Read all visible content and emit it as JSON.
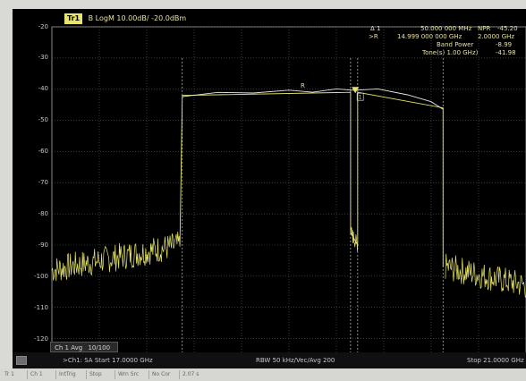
{
  "trace": {
    "badge": "Tr1",
    "label": "B LogM 10.00dB/ -20.0dBm"
  },
  "marker_readout": {
    "delta_label": "Δ 1",
    "delta_freq": "50.000 000 MHz",
    "npr_label": "NPR",
    "npr_value": "-45.20",
    "ref_label": ">R",
    "ref_freq": "14.999 000 000 GHz",
    "ref_span": "2.0000 GHz",
    "band_power_label": "Band Power",
    "band_power_value": "-8.99",
    "tone_label": "Tone(s) 1.00 GHz)",
    "tone_value": "-41.98"
  },
  "y_axis": {
    "ticks": [
      "-20",
      "-30",
      "-40",
      "-50",
      "-60",
      "-70",
      "-80",
      "-90",
      "-100",
      "-110",
      "-120"
    ]
  },
  "marker": {
    "name": "R",
    "box_label": "1"
  },
  "average": {
    "channel": "Ch 1 Avg",
    "count": "10/100"
  },
  "footer": {
    "channel_info": ">Ch1: SA  Start  17.0000 GHz",
    "rbw_info": "RBW  50 kHz/Vec/Avg 200",
    "stop_info": "Stop  21.0000 GHz"
  },
  "statusbar": {
    "items": [
      "Tr 1",
      "Ch 1",
      "IntTrig",
      "Stop",
      "Wrn Src",
      "No Cor",
      "2.07 s"
    ]
  },
  "chart_data": {
    "type": "line",
    "title": "",
    "xlabel": "",
    "ylabel": "",
    "ylim": [
      -125,
      -20
    ],
    "xlim_label": [
      "17.0000 GHz",
      "21.0000 GHz"
    ],
    "grid": true,
    "series": [
      {
        "x": [
          17.0,
          17.2,
          17.4,
          17.6,
          17.8,
          18.0,
          18.1,
          18.4,
          18.7,
          19.0,
          19.2,
          19.4,
          19.55,
          19.56,
          19.6,
          19.7,
          19.75,
          19.8,
          20.0,
          20.2,
          20.3,
          20.32,
          20.5,
          20.7,
          20.9,
          21.0
        ],
        "y": [
          -98,
          -93,
          -94,
          -92,
          -91,
          -90,
          -42,
          -41,
          -41,
          -40,
          -41,
          -40,
          -40,
          -86,
          -88,
          -90,
          -40,
          -42,
          -43,
          -44,
          -46,
          -97,
          -99,
          -100,
          -101,
          -103
        ],
        "color": "#e8e66a"
      },
      {
        "x": [
          18.1,
          18.4,
          18.7,
          19.0,
          19.2,
          19.4,
          19.55,
          19.75,
          20.0,
          20.2,
          20.3
        ],
        "y": [
          -42,
          -41,
          -41,
          -40,
          -41,
          -40,
          -40,
          -40,
          -42,
          -44,
          -46
        ],
        "color": "#e6e6e6"
      }
    ],
    "marker": {
      "name": "R",
      "x": 19.56,
      "y": -41
    }
  }
}
